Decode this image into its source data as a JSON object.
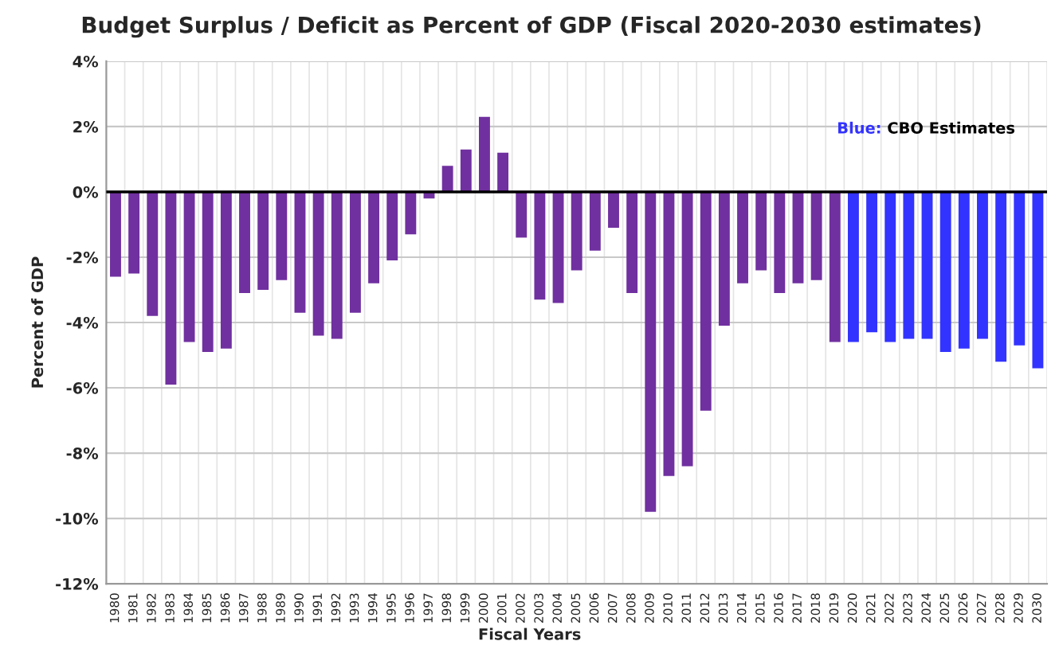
{
  "chart_data": {
    "type": "bar",
    "title": "Budget Surplus / Deficit as Percent of GDP (Fiscal 2020-2030 estimates)",
    "xlabel": "Fiscal Years",
    "ylabel": "Percent of GDP",
    "categories": [
      "1980",
      "1981",
      "1982",
      "1983",
      "1984",
      "1985",
      "1986",
      "1987",
      "1988",
      "1989",
      "1990",
      "1991",
      "1992",
      "1993",
      "1994",
      "1995",
      "1996",
      "1997",
      "1998",
      "1999",
      "2000",
      "2001",
      "2002",
      "2003",
      "2004",
      "2005",
      "2006",
      "2007",
      "2008",
      "2009",
      "2010",
      "2011",
      "2012",
      "2013",
      "2014",
      "2015",
      "2016",
      "2017",
      "2018",
      "2019",
      "2020",
      "2021",
      "2022",
      "2023",
      "2024",
      "2025",
      "2026",
      "2027",
      "2028",
      "2029",
      "2030"
    ],
    "values": [
      -2.6,
      -2.5,
      -3.8,
      -5.9,
      -4.6,
      -4.9,
      -4.8,
      -3.1,
      -3.0,
      -2.7,
      -3.7,
      -4.4,
      -4.5,
      -3.7,
      -2.8,
      -2.1,
      -1.3,
      -0.2,
      0.8,
      1.3,
      2.3,
      1.2,
      -1.4,
      -3.3,
      -3.4,
      -2.4,
      -1.8,
      -1.1,
      -3.1,
      -9.8,
      -8.7,
      -8.4,
      -6.7,
      -4.1,
      -2.8,
      -2.4,
      -3.1,
      -2.8,
      -2.7,
      -4.6,
      -4.6,
      -4.3,
      -4.6,
      -4.5,
      -4.5,
      -4.9,
      -4.8,
      -4.5,
      -5.2,
      -4.7,
      -5.4
    ],
    "colors": [
      "#7030a0",
      "#7030a0",
      "#7030a0",
      "#7030a0",
      "#7030a0",
      "#7030a0",
      "#7030a0",
      "#7030a0",
      "#7030a0",
      "#7030a0",
      "#7030a0",
      "#7030a0",
      "#7030a0",
      "#7030a0",
      "#7030a0",
      "#7030a0",
      "#7030a0",
      "#7030a0",
      "#7030a0",
      "#7030a0",
      "#7030a0",
      "#7030a0",
      "#7030a0",
      "#7030a0",
      "#7030a0",
      "#7030a0",
      "#7030a0",
      "#7030a0",
      "#7030a0",
      "#7030a0",
      "#7030a0",
      "#7030a0",
      "#7030a0",
      "#7030a0",
      "#7030a0",
      "#7030a0",
      "#7030a0",
      "#7030a0",
      "#7030a0",
      "#7030a0",
      "#3333ff",
      "#3333ff",
      "#3333ff",
      "#3333ff",
      "#3333ff",
      "#3333ff",
      "#3333ff",
      "#3333ff",
      "#3333ff",
      "#3333ff",
      "#3333ff"
    ],
    "ylim": [
      -12,
      4
    ],
    "yticks": [
      {
        "value": 4,
        "label": "4%"
      },
      {
        "value": 2,
        "label": "2%"
      },
      {
        "value": 0,
        "label": "0%"
      },
      {
        "value": -2,
        "label": "-2%"
      },
      {
        "value": -4,
        "label": "-4%"
      },
      {
        "value": -6,
        "label": "-6%"
      },
      {
        "value": -8,
        "label": "-8%"
      },
      {
        "value": -10,
        "label": "-10%"
      },
      {
        "value": -12,
        "label": "-12%"
      }
    ],
    "grid": true,
    "annotations": [
      "Blue: CBO Estimates"
    ]
  }
}
